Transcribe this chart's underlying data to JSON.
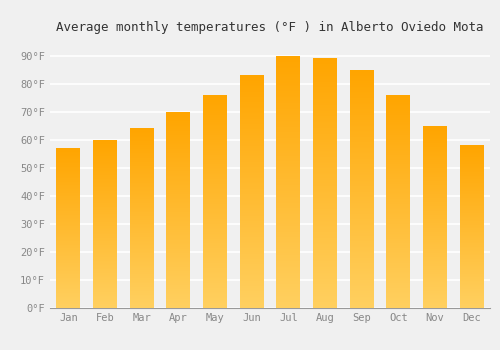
{
  "title": "Average monthly temperatures (°F ) in Alberto Oviedo Mota",
  "months": [
    "Jan",
    "Feb",
    "Mar",
    "Apr",
    "May",
    "Jun",
    "Jul",
    "Aug",
    "Sep",
    "Oct",
    "Nov",
    "Dec"
  ],
  "values": [
    57,
    60,
    64,
    70,
    76,
    83,
    90,
    89,
    85,
    76,
    65,
    58
  ],
  "bar_color_bottom": "#FFD060",
  "bar_color_top": "#FFA500",
  "ylim": [
    0,
    95
  ],
  "yticks": [
    0,
    10,
    20,
    30,
    40,
    50,
    60,
    70,
    80,
    90
  ],
  "ytick_labels": [
    "0°F",
    "10°F",
    "20°F",
    "30°F",
    "40°F",
    "50°F",
    "60°F",
    "70°F",
    "80°F",
    "90°F"
  ],
  "background_color": "#f0f0f0",
  "grid_color": "#ffffff",
  "title_fontsize": 9,
  "tick_fontsize": 7.5,
  "bar_width": 0.65
}
